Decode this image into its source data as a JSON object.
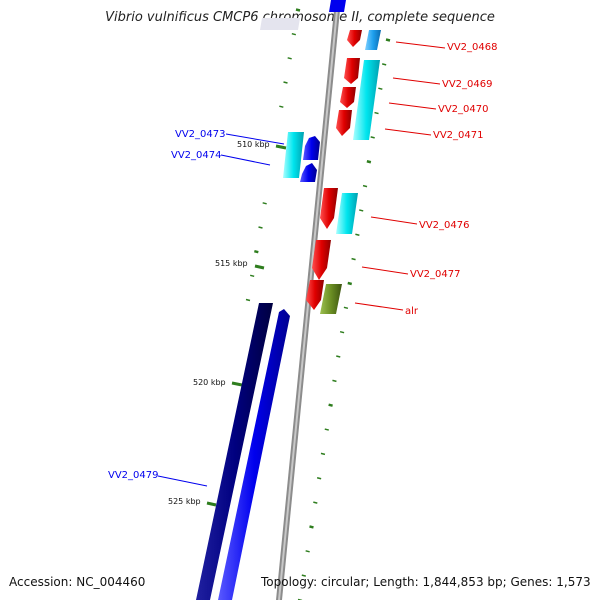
{
  "title": "Vibrio vulnificus CMCP6 chromosome II, complete sequence",
  "footer": {
    "accession": "Accession: NC_004460",
    "topology": "Topology: circular; Length: 1,844,853 bp; Genes: 1,573"
  },
  "ticks": [
    "510 kbp",
    "515 kbp",
    "520 kbp",
    "525 kbp"
  ],
  "colors": {
    "forward_gene": "#e00000",
    "reverse_gene": "#0000ee",
    "rrna_cyan": "#00e5ee",
    "sky": "#1ea0ee",
    "navy": "#000080",
    "olive": "#6b8e23",
    "backbone": "#8c8c8c",
    "ticks": "#2e7d1e"
  },
  "gene_labels": {
    "right": [
      "VV2_0468",
      "VV2_0469",
      "VV2_0470",
      "VV2_0471",
      "VV2_0476",
      "VV2_0477",
      "alr"
    ],
    "left": [
      "VV2_0473",
      "VV2_0474",
      "VV2_0479"
    ]
  }
}
